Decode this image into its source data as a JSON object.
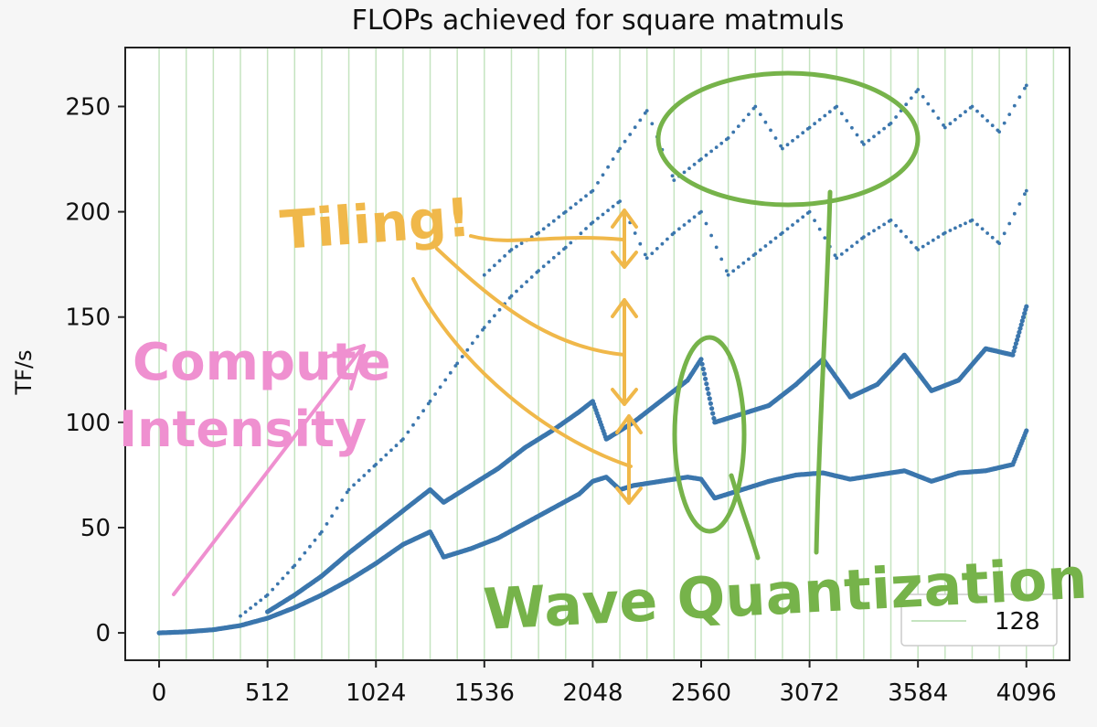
{
  "chart_data": {
    "type": "scatter",
    "title": "FLOPs achieved for square matmuls",
    "xlabel": "",
    "ylabel": "TF/s",
    "xlim": [
      -160,
      4300
    ],
    "ylim": [
      -13,
      278
    ],
    "xticks": [
      0,
      512,
      1024,
      1536,
      2048,
      2560,
      3072,
      3584,
      4096
    ],
    "yticks": [
      0,
      50,
      100,
      150,
      200,
      250
    ],
    "grid": "vertical lines every 128",
    "legend": {
      "position": "lower-right",
      "entries": [
        "128"
      ]
    },
    "series_color": "#3b76ad",
    "grid_color": "#c5e4c0",
    "series": [
      {
        "marker": "dense-line",
        "points": [
          [
            0,
            0
          ],
          [
            128,
            0.5
          ],
          [
            256,
            1.5
          ],
          [
            384,
            3.5
          ],
          [
            512,
            7
          ],
          [
            640,
            12
          ],
          [
            768,
            18
          ],
          [
            896,
            25
          ],
          [
            1024,
            33
          ],
          [
            1152,
            42
          ],
          [
            1280,
            48
          ],
          [
            1344,
            36
          ],
          [
            1472,
            40
          ],
          [
            1600,
            45
          ],
          [
            1728,
            52
          ],
          [
            1856,
            59
          ],
          [
            1984,
            66
          ],
          [
            2048,
            72
          ],
          [
            2112,
            74
          ],
          [
            2176,
            68
          ],
          [
            2240,
            70
          ],
          [
            2368,
            72
          ],
          [
            2496,
            74
          ],
          [
            2560,
            73
          ],
          [
            2624,
            64
          ],
          [
            2752,
            68
          ],
          [
            2880,
            72
          ],
          [
            3008,
            75
          ],
          [
            3136,
            76
          ],
          [
            3264,
            73
          ],
          [
            3392,
            75
          ],
          [
            3520,
            77
          ],
          [
            3648,
            72
          ],
          [
            3776,
            76
          ],
          [
            3904,
            77
          ],
          [
            4032,
            80
          ],
          [
            4096,
            96
          ]
        ]
      },
      {
        "marker": "dense-line",
        "points": [
          [
            512,
            10
          ],
          [
            640,
            18
          ],
          [
            768,
            27
          ],
          [
            896,
            38
          ],
          [
            1024,
            48
          ],
          [
            1152,
            58
          ],
          [
            1280,
            68
          ],
          [
            1344,
            62
          ],
          [
            1472,
            70
          ],
          [
            1600,
            78
          ],
          [
            1728,
            88
          ],
          [
            1856,
            96
          ],
          [
            1984,
            105
          ],
          [
            2048,
            110
          ],
          [
            2112,
            92
          ],
          [
            2240,
            100
          ],
          [
            2368,
            110
          ],
          [
            2496,
            120
          ],
          [
            2560,
            130
          ],
          [
            2624,
            100
          ],
          [
            2752,
            104
          ],
          [
            2880,
            108
          ],
          [
            3008,
            118
          ],
          [
            3136,
            130
          ],
          [
            3264,
            112
          ],
          [
            3392,
            118
          ],
          [
            3520,
            132
          ],
          [
            3648,
            115
          ],
          [
            3776,
            120
          ],
          [
            3904,
            135
          ],
          [
            4032,
            132
          ],
          [
            4096,
            155
          ]
        ]
      },
      {
        "marker": "sparse-dots",
        "points": [
          [
            384,
            8
          ],
          [
            512,
            18
          ],
          [
            640,
            32
          ],
          [
            768,
            48
          ],
          [
            896,
            68
          ],
          [
            1024,
            80
          ],
          [
            1152,
            92
          ],
          [
            1280,
            110
          ],
          [
            1408,
            128
          ],
          [
            1536,
            145
          ],
          [
            1664,
            160
          ],
          [
            1792,
            172
          ],
          [
            1920,
            183
          ],
          [
            2048,
            195
          ],
          [
            2176,
            205
          ],
          [
            2304,
            178
          ],
          [
            2432,
            190
          ],
          [
            2560,
            200
          ],
          [
            2688,
            170
          ],
          [
            2816,
            180
          ],
          [
            2944,
            190
          ],
          [
            3072,
            200
          ],
          [
            3200,
            178
          ],
          [
            3328,
            188
          ],
          [
            3456,
            196
          ],
          [
            3584,
            182
          ],
          [
            3712,
            190
          ],
          [
            3840,
            196
          ],
          [
            3968,
            185
          ],
          [
            4096,
            210
          ]
        ]
      },
      {
        "marker": "sparse-dots",
        "points": [
          [
            1536,
            170
          ],
          [
            1664,
            182
          ],
          [
            1792,
            190
          ],
          [
            1920,
            200
          ],
          [
            2048,
            210
          ],
          [
            2176,
            230
          ],
          [
            2304,
            248
          ],
          [
            2432,
            215
          ],
          [
            2560,
            225
          ],
          [
            2688,
            235
          ],
          [
            2816,
            250
          ],
          [
            2944,
            230
          ],
          [
            3072,
            240
          ],
          [
            3200,
            250
          ],
          [
            3328,
            232
          ],
          [
            3456,
            242
          ],
          [
            3584,
            258
          ],
          [
            3712,
            240
          ],
          [
            3840,
            250
          ],
          [
            3968,
            238
          ],
          [
            4096,
            260
          ]
        ]
      }
    ]
  },
  "annotations": {
    "tiling": "Tiling!",
    "compute": "Compute",
    "intensity": "Intensity",
    "wave": "Wave Quantization",
    "colors": {
      "tiling": "#f0b84a",
      "compute": "#ef90d0",
      "wave": "#76b34a"
    }
  }
}
